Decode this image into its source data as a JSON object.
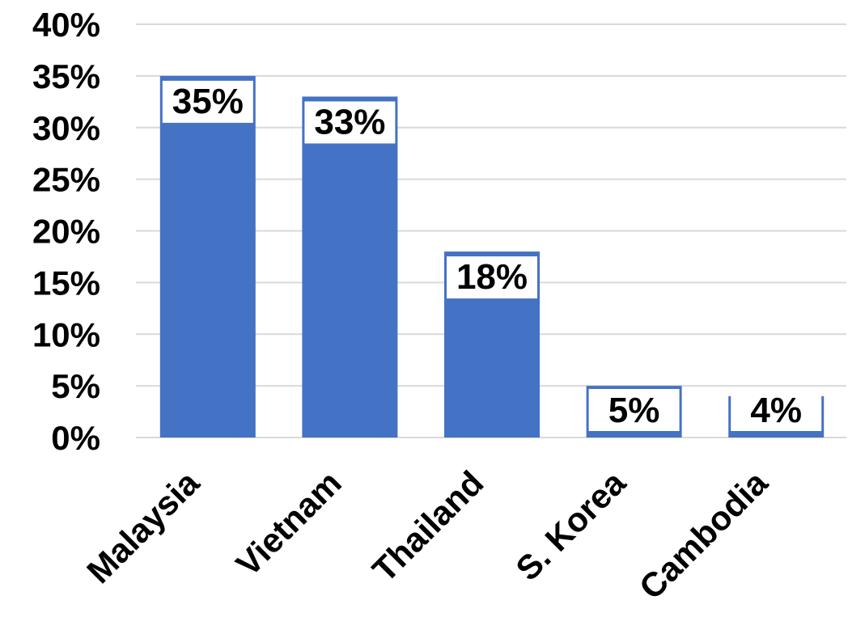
{
  "chart_data": {
    "type": "bar",
    "categories": [
      "Malaysia",
      "Vietnam",
      "Thailand",
      "S. Korea",
      "Cambodia"
    ],
    "values": [
      35,
      33,
      18,
      5,
      4
    ],
    "data_labels": [
      "35%",
      "33%",
      "18%",
      "5%",
      "4%"
    ],
    "y_tick_labels": [
      "0%",
      "5%",
      "10%",
      "15%",
      "20%",
      "25%",
      "30%",
      "35%",
      "40%"
    ],
    "y_ticks": [
      0,
      5,
      10,
      15,
      20,
      25,
      30,
      35,
      40
    ],
    "ylim": [
      0,
      40
    ],
    "title": "",
    "xlabel": "",
    "ylabel": "",
    "grid": true,
    "legend": "none",
    "colors": {
      "bar": "#4472C4",
      "grid": "#d9d9d9",
      "text": "#000000"
    }
  }
}
